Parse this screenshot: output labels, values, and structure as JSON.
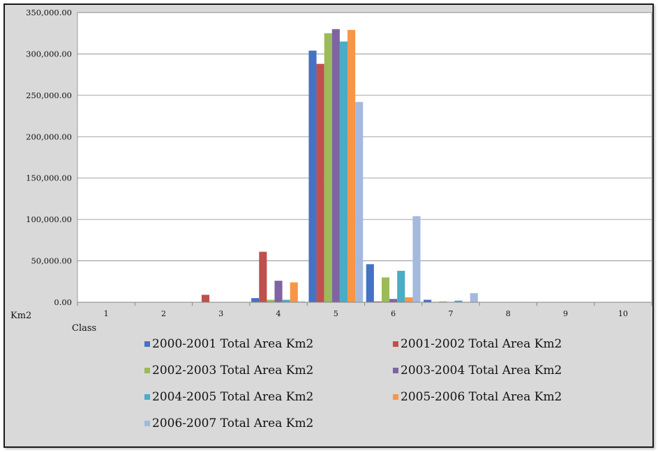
{
  "chart_data": {
    "type": "bar",
    "ylabel": "Km2",
    "xlabel": "Class",
    "categories": [
      "1",
      "2",
      "3",
      "4",
      "5",
      "6",
      "7",
      "8",
      "9",
      "10"
    ],
    "ylim": [
      0,
      350000
    ],
    "y_ticks": [
      "0.00",
      "50,000.00",
      "100,000.00",
      "150,000.00",
      "200,000.00",
      "250,000.00",
      "300,000.00",
      "350,000.00"
    ],
    "y_tick_values": [
      0,
      50000,
      100000,
      150000,
      200000,
      250000,
      300000,
      350000
    ],
    "grid": true,
    "legend_position": "bottom",
    "series": [
      {
        "name": "2000-2001 Total Area Km2",
        "color": "#4472c4",
        "values": [
          0,
          0,
          0,
          5000,
          304000,
          46000,
          3000,
          0,
          0,
          0
        ]
      },
      {
        "name": "2001-2002 Total Area Km2",
        "color": "#c0504d",
        "values": [
          0,
          0,
          9000,
          61000,
          288000,
          1000,
          500,
          0,
          0,
          0
        ]
      },
      {
        "name": "2002-2003 Total Area Km2",
        "color": "#9bbb59",
        "values": [
          0,
          0,
          0,
          3000,
          325000,
          30000,
          1000,
          0,
          0,
          0
        ]
      },
      {
        "name": "2003-2004 Total Area Km2",
        "color": "#8064a2",
        "values": [
          0,
          0,
          0,
          26000,
          330000,
          4000,
          500,
          0,
          0,
          0
        ]
      },
      {
        "name": "2004-2005 Total Area Km2",
        "color": "#4bacc6",
        "values": [
          0,
          0,
          0,
          3000,
          315000,
          38000,
          2000,
          0,
          0,
          0
        ]
      },
      {
        "name": "2005-2006 Total Area Km2",
        "color": "#f79646",
        "values": [
          0,
          0,
          0,
          24000,
          329000,
          6000,
          500,
          0,
          0,
          0
        ]
      },
      {
        "name": "2006-2007 Total Area Km2",
        "color": "#a5b9df",
        "values": [
          0,
          0,
          0,
          1000,
          242000,
          104000,
          11000,
          0,
          0,
          0
        ]
      }
    ]
  }
}
